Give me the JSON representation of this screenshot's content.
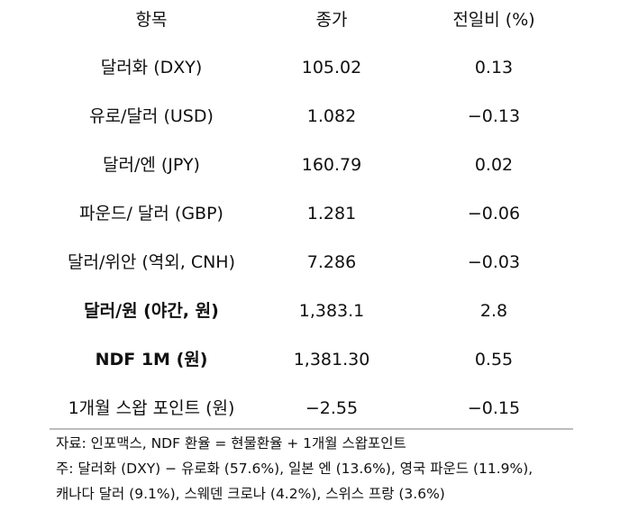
{
  "table": {
    "header": [
      "항목",
      "종가",
      "전일비 (%)"
    ],
    "rows": [
      [
        "달러화 (DXY)",
        "105.02",
        "0.13"
      ],
      [
        "유로/달러 (USD)",
        "1.082",
        "−0.13"
      ],
      [
        "달러/엔 (JPY)",
        "160.79",
        "0.02"
      ],
      [
        "파운드/ 달러 (GBP)",
        "1.281",
        "−0.06"
      ],
      [
        "달러/위안 (역외, CNH)",
        "7.286",
        "−0.03"
      ],
      [
        "달러/원 (야간, 원)",
        "1,383.1",
        "2.8"
      ],
      [
        "NDF 1M (원)",
        "1,381.30",
        "0.55"
      ],
      [
        "1개월 스왑 포인트 (원)",
        "−2.55",
        "−0.15"
      ]
    ]
  },
  "notes": [
    "자료: 인포맥스, NDF 환율 = 현물환율 + 1개월 스왑포인트",
    "주: 달러화 (DXY) − 유로화 (57.6%), 일본 엔 (13.6%), 영국 파운드 (11.9%),",
    "캐나다 달러 (9.1%), 스웨덴 크로나 (4.2%), 스위스 프랑 (3.6%)"
  ]
}
